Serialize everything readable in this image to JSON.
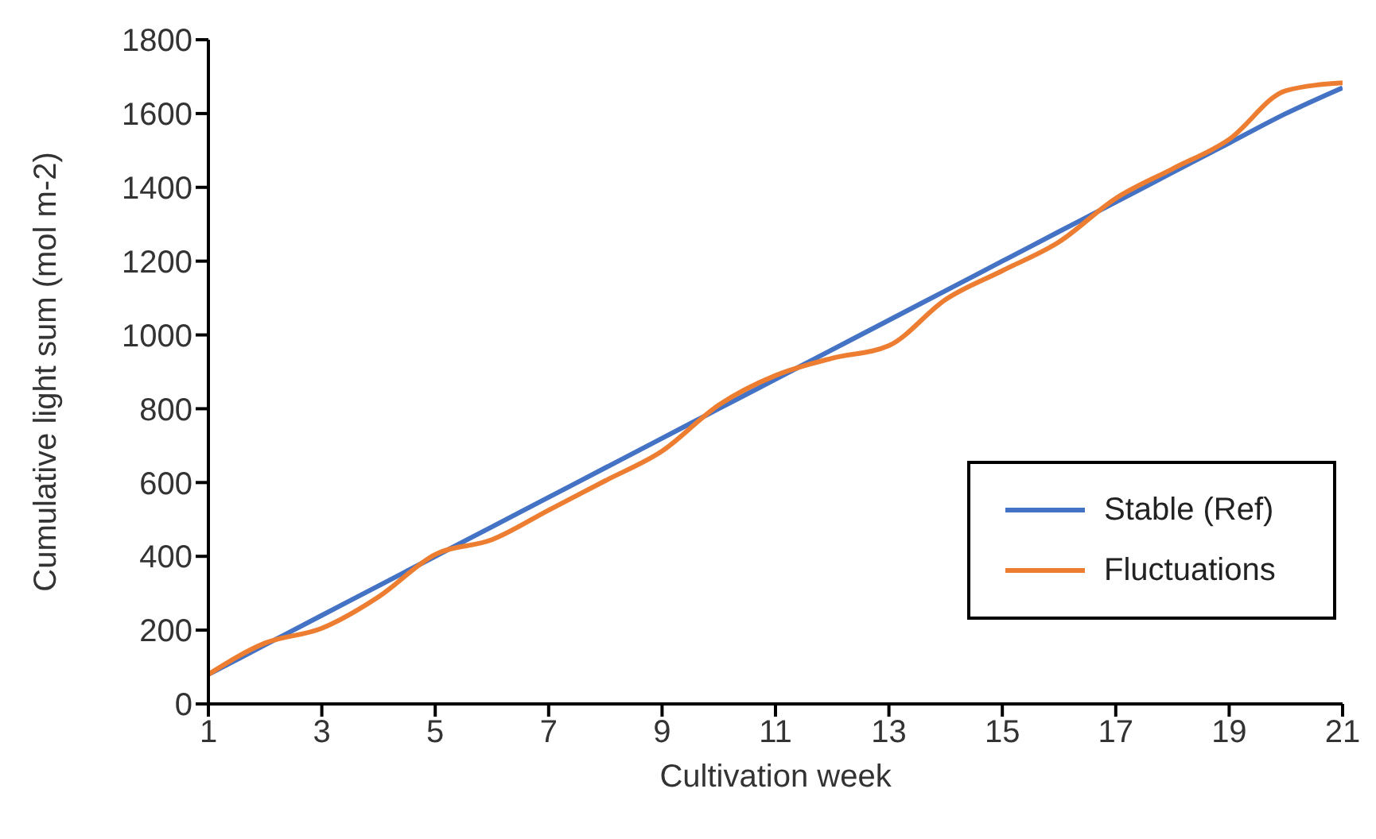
{
  "chart_data": {
    "type": "line",
    "xlabel": "Cultivation week",
    "ylabel": "Cumulative light sum (mol m-2)",
    "x": [
      1,
      2,
      3,
      4,
      5,
      6,
      7,
      8,
      9,
      10,
      11,
      12,
      13,
      14,
      15,
      16,
      17,
      18,
      19,
      20,
      21
    ],
    "series": [
      {
        "name": "Stable (Ref)",
        "color": "#4472c4",
        "values": [
          80,
          160,
          240,
          320,
          400,
          480,
          560,
          640,
          720,
          800,
          880,
          960,
          1040,
          1120,
          1200,
          1280,
          1360,
          1440,
          1520,
          1600,
          1670
        ]
      },
      {
        "name": "Fluctuations",
        "color": "#ed7d31",
        "values": [
          80,
          165,
          205,
          290,
          405,
          445,
          525,
          605,
          685,
          810,
          890,
          937,
          971,
          1096,
          1174,
          1252,
          1370,
          1450,
          1530,
          1662,
          1683
        ]
      }
    ],
    "xlim": [
      1,
      21
    ],
    "xticks": [
      1,
      3,
      5,
      7,
      9,
      11,
      13,
      15,
      17,
      19,
      21
    ],
    "ylim": [
      0,
      1800
    ],
    "yticks": [
      0,
      200,
      400,
      600,
      800,
      1000,
      1200,
      1400,
      1600,
      1800
    ],
    "grid": false,
    "legend": "right",
    "marker": "none",
    "line_style": "solid"
  }
}
